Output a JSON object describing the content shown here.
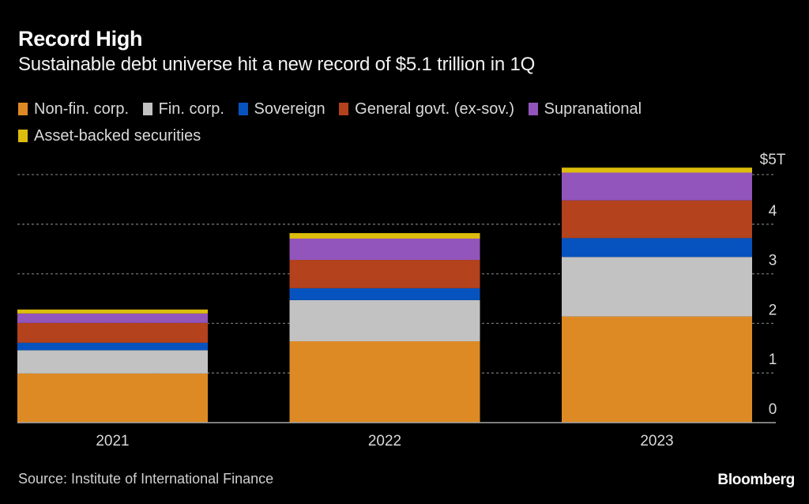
{
  "header": {
    "title": "Record High",
    "subtitle": "Sustainable debt universe hit a new record of $5.1 trillion in 1Q"
  },
  "footer": {
    "source": "Source: Institute of International Finance",
    "brand": "Bloomberg"
  },
  "chart_data": {
    "type": "bar",
    "stacked": true,
    "title": "Record High",
    "subtitle": "Sustainable debt universe hit a new record of $5.1 trillion in 1Q",
    "xlabel": "",
    "ylabel": "",
    "categories": [
      "2021",
      "2022",
      "2023"
    ],
    "ylim": [
      0,
      5
    ],
    "yticks": [
      0,
      1,
      2,
      3,
      4,
      5
    ],
    "ytick_labels": [
      "0",
      "1",
      "2",
      "3",
      "4",
      "$5T"
    ],
    "grid": true,
    "legend_position": "top-left",
    "y_axis_side": "right",
    "series": [
      {
        "name": "Non-fin. corp.",
        "color": "#dd8a25",
        "values": [
          0.99,
          1.64,
          2.14
        ]
      },
      {
        "name": "Fin. corp.",
        "color": "#c2c2c2",
        "values": [
          0.47,
          0.83,
          1.2
        ]
      },
      {
        "name": "Sovereign",
        "color": "#0653bf",
        "values": [
          0.15,
          0.24,
          0.38
        ]
      },
      {
        "name": "General govt. (ex-sov.)",
        "color": "#b3421d",
        "values": [
          0.4,
          0.57,
          0.76
        ]
      },
      {
        "name": "Supranational",
        "color": "#9255bb",
        "values": [
          0.19,
          0.43,
          0.56
        ]
      },
      {
        "name": "Asset-backed securities",
        "color": "#dcbd0c",
        "values": [
          0.08,
          0.11,
          0.1
        ]
      }
    ]
  }
}
